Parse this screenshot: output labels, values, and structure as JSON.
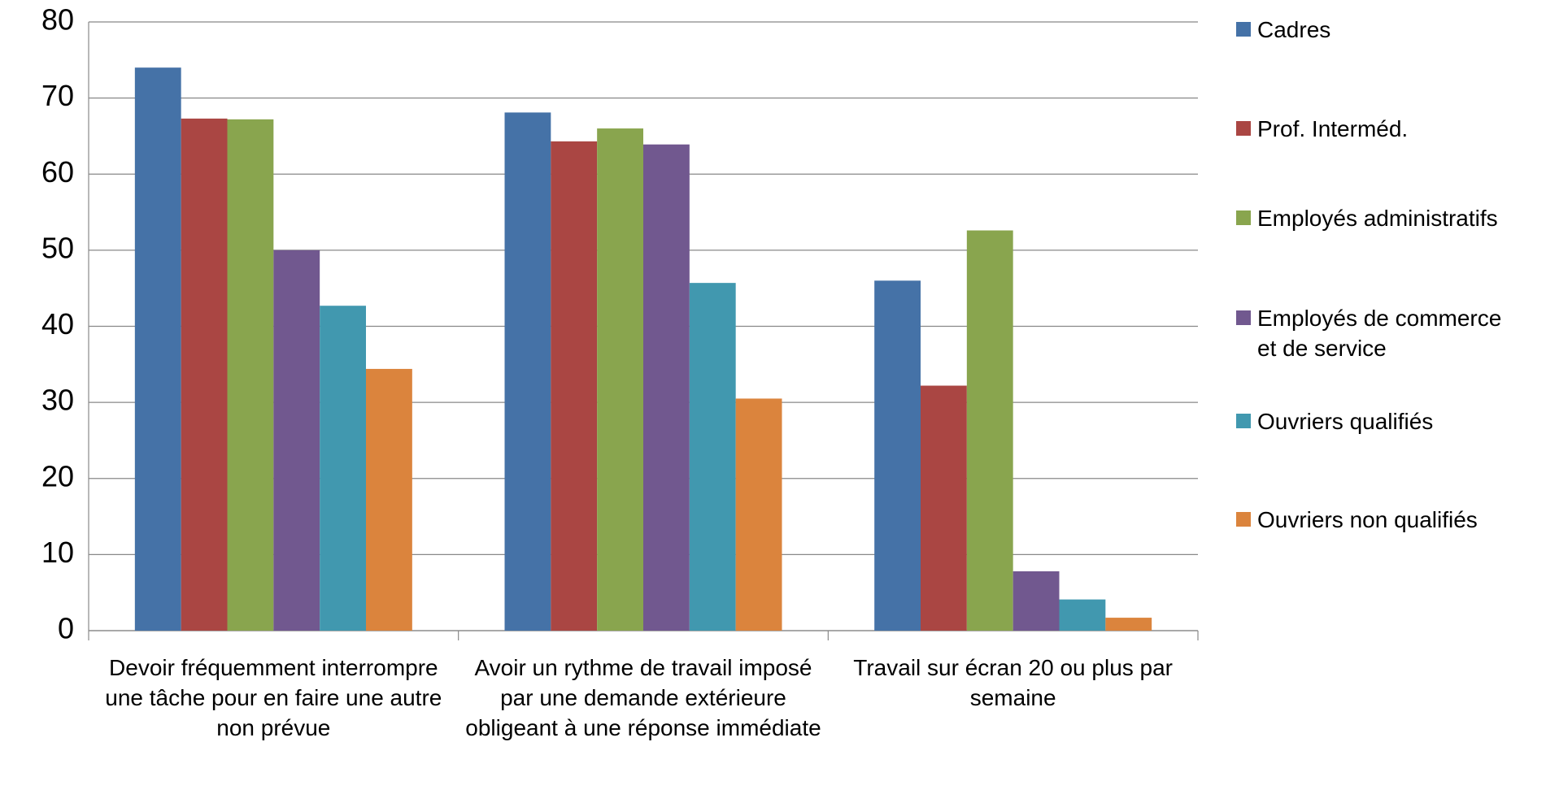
{
  "chart_data": {
    "type": "bar",
    "categories": [
      "Devoir fréquemment interrompre une tâche pour en faire une autre non prévue",
      "Avoir un rythme de travail imposé par une demande extérieure obligeant à une réponse immédiate",
      "Travail sur écran 20 ou plus par semaine"
    ],
    "series": [
      {
        "name": "Cadres",
        "color": "#4572a7",
        "values": [
          74.0,
          68.1,
          46.0
        ]
      },
      {
        "name": "Prof. Interméd.",
        "color": "#aa4643",
        "values": [
          67.3,
          64.3,
          32.2
        ]
      },
      {
        "name": "Employés administratifs",
        "color": "#89a54e",
        "values": [
          67.2,
          66.0,
          52.6
        ]
      },
      {
        "name": "Employés de commerce et de service",
        "color": "#71588f",
        "values": [
          50.0,
          63.9,
          7.8
        ]
      },
      {
        "name": "Ouvriers qualifiés",
        "color": "#4198af",
        "values": [
          42.7,
          45.7,
          4.1
        ]
      },
      {
        "name": "Ouvriers non qualifiés",
        "color": "#db843d",
        "values": [
          34.4,
          30.5,
          1.7
        ]
      }
    ],
    "ylim": [
      0,
      80
    ],
    "yticks": [
      0,
      10,
      20,
      30,
      40,
      50,
      60,
      70,
      80
    ],
    "grid": true,
    "legend": "right"
  }
}
